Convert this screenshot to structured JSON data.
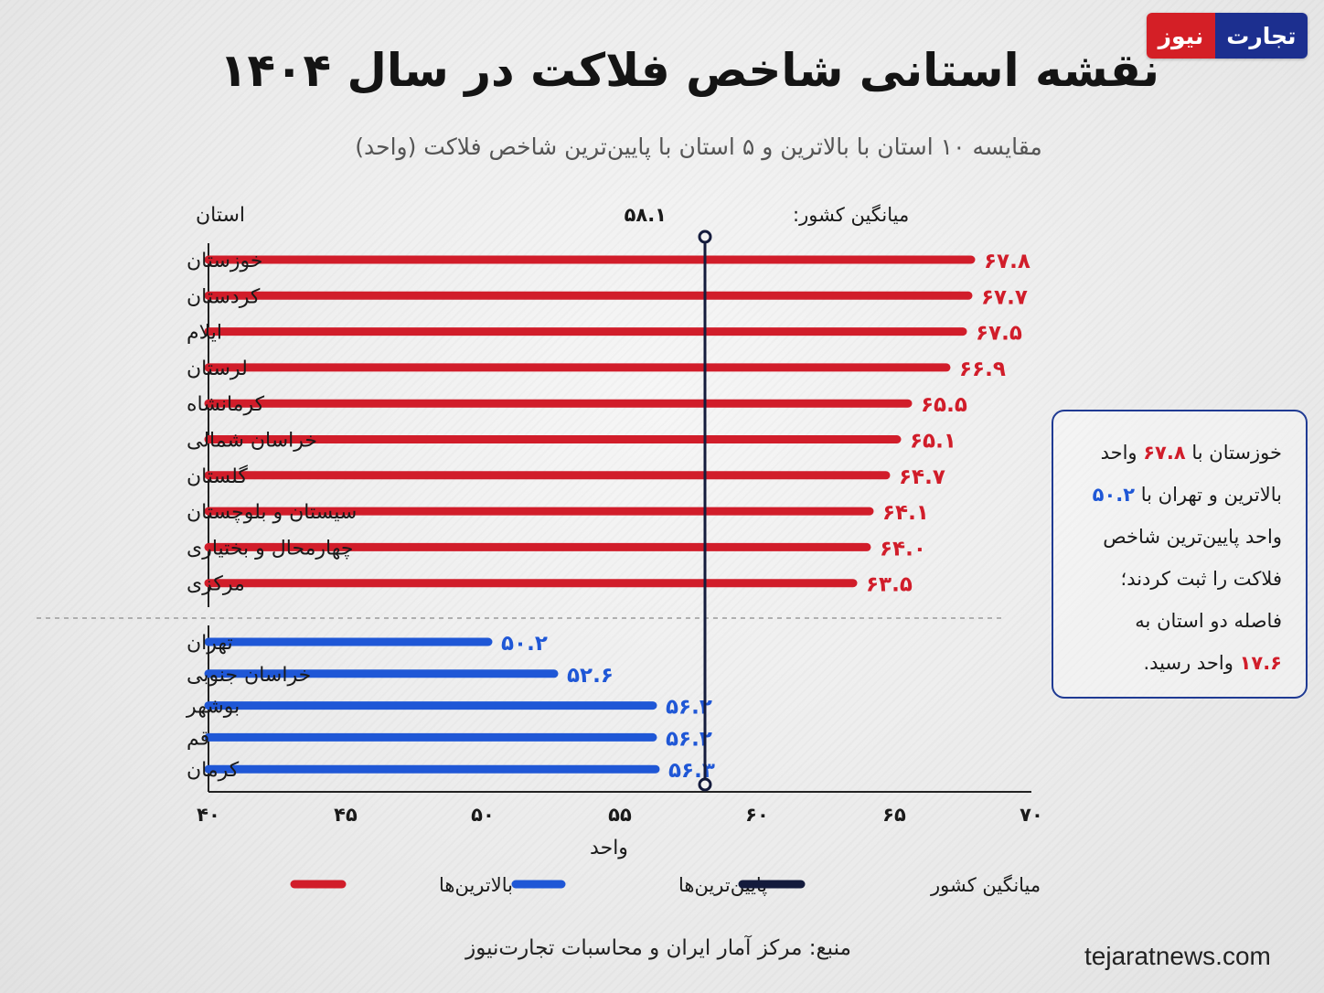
{
  "header": {
    "logo_a": "تجارت",
    "logo_b": "نیوز",
    "title": "نقشه استانی شاخص فلاکت در سال ۱۴۰۴",
    "subtitle": "مقایسه ۱۰ استان با بالاترین و ۵ استان با پایین‌ترین شاخص فلاکت (واحد)"
  },
  "chart_data": {
    "type": "bar",
    "orientation": "horizontal",
    "category_axis_label": "استان",
    "xlabel": "واحد",
    "xlim": [
      40,
      70
    ],
    "xticks": [
      40,
      45,
      50,
      55,
      60,
      65,
      70
    ],
    "xtick_labels": [
      "۴۰",
      "۴۵",
      "۵۰",
      "۵۵",
      "۶۰",
      "۶۵",
      "۷۰"
    ],
    "series": [
      {
        "name": "بالاترین‌ها",
        "color": "#d11d2a",
        "categories": [
          "خوزستان",
          "کردستان",
          "ایلام",
          "لرستان",
          "کرمانشاه",
          "خراسان شمالی",
          "گلستان",
          "سیستان و بلوچستان",
          "چهارمحال و بختیاری",
          "مرکزی"
        ],
        "values": [
          67.8,
          67.7,
          67.5,
          66.9,
          65.5,
          65.1,
          64.7,
          64.1,
          64.0,
          63.5
        ],
        "value_labels": [
          "۶۷.۸",
          "۶۷.۷",
          "۶۷.۵",
          "۶۶.۹",
          "۶۵.۵",
          "۶۵.۱",
          "۶۴.۷",
          "۶۴.۱",
          "۶۴.۰",
          "۶۳.۵"
        ]
      },
      {
        "name": "پایین‌ترین‌ها",
        "color": "#1f57d6",
        "categories": [
          "تهران",
          "خراسان جنوبی",
          "بوشهر",
          "قم",
          "کرمان"
        ],
        "values": [
          50.2,
          52.6,
          56.2,
          56.2,
          56.3
        ],
        "value_labels": [
          "۵۰.۲",
          "۵۲.۶",
          "۵۶.۲",
          "۵۶.۲",
          "۵۶.۳"
        ]
      }
    ],
    "reference_line": {
      "name": "میانگین کشور",
      "label": "میانگین کشور:",
      "value": 58.1,
      "value_label": "۵۸.۱",
      "color": "#141b3c"
    },
    "legend": {
      "placement": "bottom",
      "items": [
        {
          "label": "بالاترین‌ها",
          "color": "#d11d2a"
        },
        {
          "label": "پایین‌ترین‌ها",
          "color": "#1f57d6"
        },
        {
          "label": "میانگین کشور",
          "color": "#141b3c"
        }
      ]
    },
    "grid": false
  },
  "callout": {
    "l1a": "خوزستان با ",
    "l1b": "۶۷.۸",
    "l1c": " واحد",
    "l2a": "بالاترین و تهران با ",
    "l2b": "۵۰.۲",
    "l3": "واحد پایین‌ترین شاخص",
    "l4": "فلاکت را ثبت کردند؛",
    "l5": "فاصله دو استان به",
    "l6a": "۱۷.۶",
    "l6b": " واحد رسید."
  },
  "footer": {
    "source": "منبع: مرکز آمار ایران و محاسبات تجارت‌نیوز",
    "website": "tejaratnews.com"
  }
}
